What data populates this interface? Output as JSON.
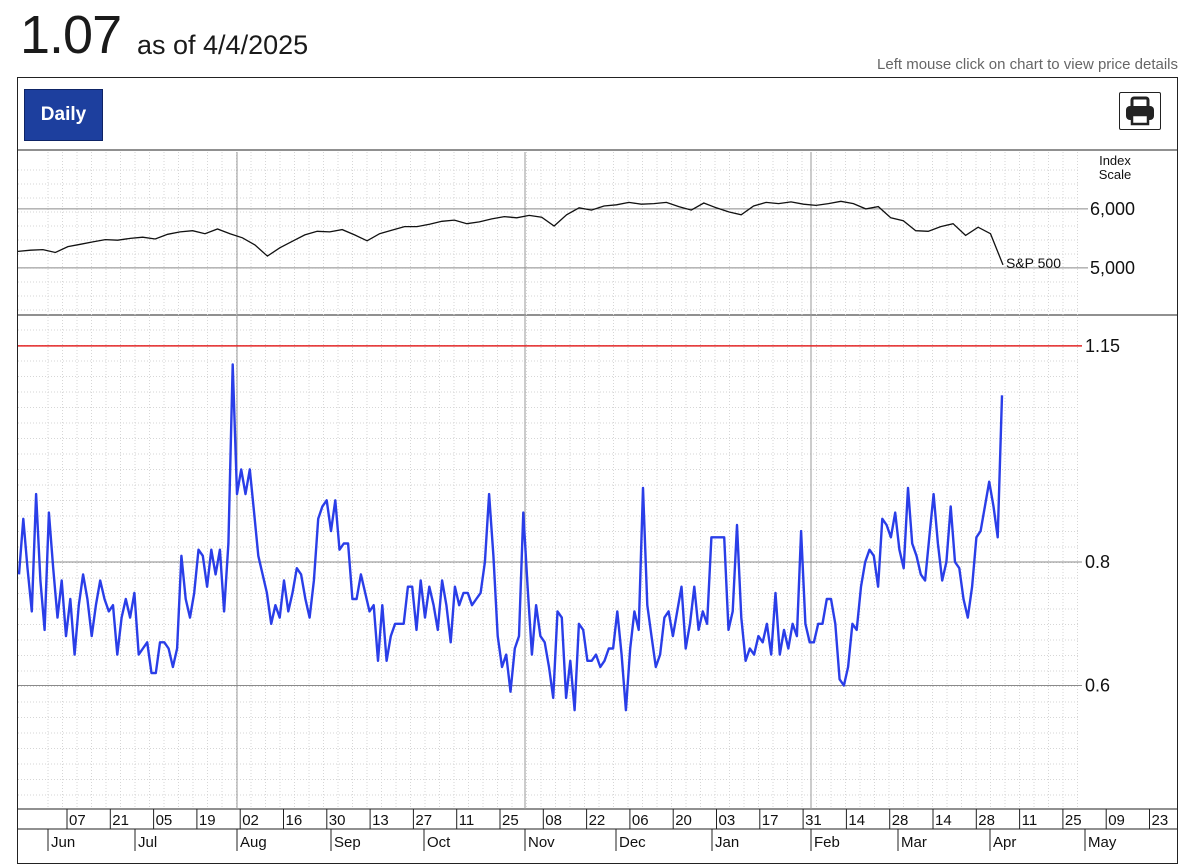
{
  "header": {
    "value": "1.07",
    "as_of": "as of 4/4/2025",
    "hint": "Left mouse click on chart to view price details"
  },
  "toolbar": {
    "period_button": "Daily",
    "print_icon": "printer-icon"
  },
  "colors": {
    "indicator_line": "#2a3ee8",
    "threshold_line": "#e32626",
    "index_line": "#111111",
    "button_bg": "#1d3f9e"
  },
  "chart_data": [
    {
      "type": "line",
      "name": "S&P 500",
      "index_axis_title": [
        "Index",
        "Scale"
      ],
      "y_ticks": [
        5000,
        6000
      ],
      "y_tick_labels": [
        "5,000",
        "6,000"
      ],
      "ylim": [
        4200,
        7000
      ],
      "series": [
        {
          "name": "S&P 500",
          "values": [
            5280,
            5300,
            5310,
            5260,
            5360,
            5400,
            5440,
            5480,
            5470,
            5500,
            5520,
            5490,
            5570,
            5610,
            5630,
            5580,
            5660,
            5580,
            5510,
            5390,
            5200,
            5340,
            5450,
            5560,
            5620,
            5610,
            5650,
            5560,
            5460,
            5580,
            5640,
            5700,
            5700,
            5740,
            5790,
            5810,
            5750,
            5780,
            5830,
            5870,
            5850,
            5890,
            5860,
            5710,
            5900,
            6020,
            5980,
            6050,
            6070,
            6110,
            6080,
            6090,
            6110,
            6040,
            5980,
            6100,
            6020,
            5950,
            5900,
            6050,
            6110,
            6090,
            6120,
            6080,
            6060,
            6090,
            6130,
            6090,
            6000,
            6040,
            5850,
            5800,
            5630,
            5620,
            5700,
            5750,
            5550,
            5690,
            5580,
            5050
          ]
        }
      ],
      "x_labels": [
        "2024-06-03",
        "2025-04-03"
      ],
      "annotation": "S&P 500"
    },
    {
      "type": "line",
      "title": "",
      "y_ticks": [
        0.6,
        0.8,
        1.15
      ],
      "y_tick_labels": [
        "0.6",
        "0.8",
        "1.15"
      ],
      "ylim": [
        0.4,
        1.2
      ],
      "threshold": 1.15,
      "x_tick_days": [
        "07",
        "21",
        "05",
        "19",
        "02",
        "16",
        "30",
        "13",
        "27",
        "11",
        "25",
        "08",
        "22",
        "06",
        "20",
        "03",
        "17",
        "31",
        "14",
        "28",
        "14",
        "28",
        "11",
        "25",
        "09",
        "23"
      ],
      "x_tick_months": [
        "Jun",
        "Jul",
        "Aug",
        "Sep",
        "Oct",
        "Nov",
        "Dec",
        "Jan",
        "Feb",
        "Mar",
        "Apr",
        "May"
      ],
      "series": [
        {
          "name": "",
          "values": [
            0.78,
            0.87,
            0.79,
            0.72,
            0.91,
            0.77,
            0.69,
            0.88,
            0.79,
            0.71,
            0.77,
            0.68,
            0.74,
            0.65,
            0.73,
            0.78,
            0.74,
            0.68,
            0.73,
            0.77,
            0.74,
            0.72,
            0.73,
            0.65,
            0.71,
            0.74,
            0.71,
            0.75,
            0.65,
            0.66,
            0.67,
            0.62,
            0.62,
            0.67,
            0.67,
            0.66,
            0.63,
            0.66,
            0.81,
            0.74,
            0.71,
            0.75,
            0.82,
            0.81,
            0.76,
            0.82,
            0.78,
            0.82,
            0.72,
            0.83,
            1.12,
            0.91,
            0.95,
            0.91,
            0.95,
            0.88,
            0.81,
            0.78,
            0.75,
            0.7,
            0.73,
            0.71,
            0.77,
            0.72,
            0.75,
            0.79,
            0.78,
            0.74,
            0.71,
            0.77,
            0.87,
            0.89,
            0.9,
            0.85,
            0.9,
            0.82,
            0.83,
            0.83,
            0.74,
            0.74,
            0.78,
            0.75,
            0.72,
            0.73,
            0.64,
            0.73,
            0.64,
            0.68,
            0.7,
            0.7,
            0.7,
            0.76,
            0.76,
            0.69,
            0.77,
            0.71,
            0.76,
            0.73,
            0.69,
            0.77,
            0.73,
            0.67,
            0.76,
            0.73,
            0.75,
            0.75,
            0.73,
            0.74,
            0.75,
            0.8,
            0.91,
            0.81,
            0.68,
            0.63,
            0.65,
            0.59,
            0.66,
            0.68,
            0.88,
            0.76,
            0.65,
            0.73,
            0.68,
            0.67,
            0.63,
            0.58,
            0.72,
            0.71,
            0.58,
            0.64,
            0.56,
            0.7,
            0.69,
            0.64,
            0.64,
            0.65,
            0.63,
            0.64,
            0.66,
            0.66,
            0.72,
            0.65,
            0.56,
            0.66,
            0.72,
            0.69,
            0.92,
            0.73,
            0.68,
            0.63,
            0.65,
            0.71,
            0.72,
            0.68,
            0.72,
            0.76,
            0.66,
            0.7,
            0.76,
            0.69,
            0.72,
            0.7,
            0.84,
            0.84,
            0.84,
            0.84,
            0.69,
            0.72,
            0.86,
            0.71,
            0.64,
            0.66,
            0.65,
            0.68,
            0.67,
            0.7,
            0.65,
            0.75,
            0.65,
            0.69,
            0.66,
            0.7,
            0.68,
            0.85,
            0.7,
            0.67,
            0.67,
            0.7,
            0.7,
            0.74,
            0.74,
            0.7,
            0.61,
            0.6,
            0.63,
            0.7,
            0.69,
            0.76,
            0.8,
            0.82,
            0.81,
            0.76,
            0.87,
            0.86,
            0.84,
            0.88,
            0.82,
            0.79,
            0.92,
            0.83,
            0.81,
            0.78,
            0.77,
            0.84,
            0.91,
            0.83,
            0.77,
            0.8,
            0.89,
            0.8,
            0.79,
            0.74,
            0.71,
            0.76,
            0.84,
            0.85,
            0.89,
            0.93,
            0.89,
            0.84,
            1.07
          ]
        }
      ]
    }
  ]
}
